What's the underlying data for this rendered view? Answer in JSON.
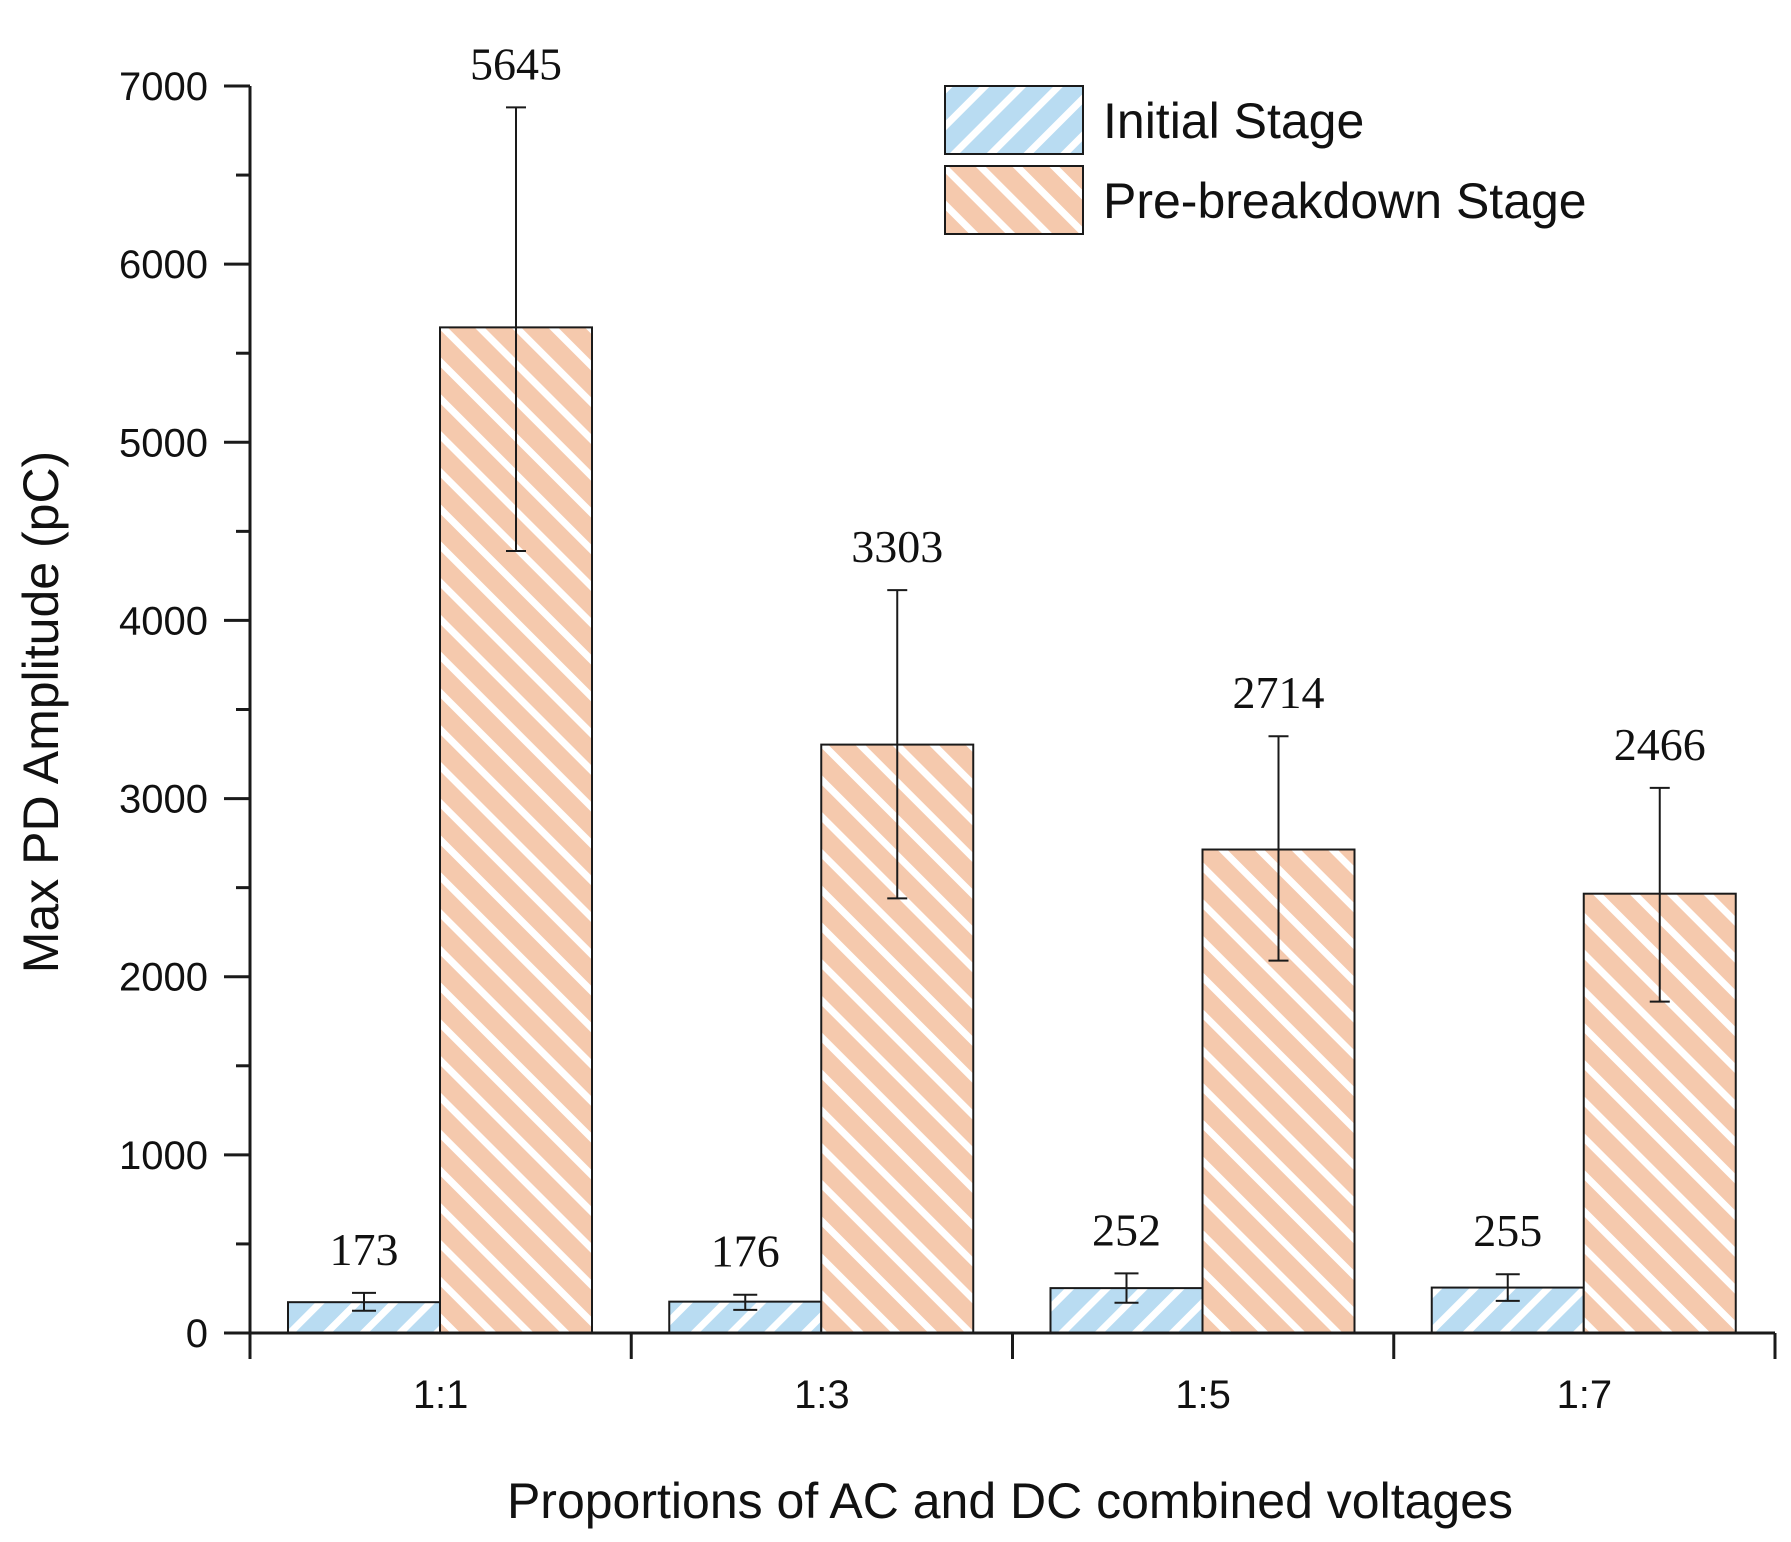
{
  "chart_data": {
    "type": "bar",
    "title": "",
    "xlabel": "Proportions of AC and DC combined voltages",
    "ylabel": "Max PD Amplitude (pC)",
    "ylim": [
      0,
      7000
    ],
    "yticks": [
      "0",
      "1000",
      "2000",
      "3000",
      "4000",
      "5000",
      "6000",
      "7000"
    ],
    "categories": [
      "1:1",
      "1:3",
      "1:5",
      "1:7"
    ],
    "legend_position": "top-right",
    "series": [
      {
        "name": "Initial Stage",
        "values": [
          173,
          176,
          252,
          255
        ],
        "labels": [
          "173",
          "176",
          "252",
          "255"
        ],
        "error_low": [
          125,
          130,
          170,
          180
        ],
        "error_high": [
          225,
          215,
          335,
          330
        ],
        "fill": "#b9dcf2",
        "stripe": "#ffffff",
        "hatch": "forward"
      },
      {
        "name": "Pre-breakdown Stage",
        "values": [
          5645,
          3303,
          2714,
          2466
        ],
        "labels": [
          "5645",
          "3303",
          "2714",
          "2466"
        ],
        "error_low": [
          4390,
          2440,
          2090,
          1860
        ],
        "error_high": [
          6880,
          4170,
          3350,
          3060
        ],
        "fill": "#f5c9ad",
        "stripe": "#ffffff",
        "hatch": "back"
      }
    ]
  }
}
